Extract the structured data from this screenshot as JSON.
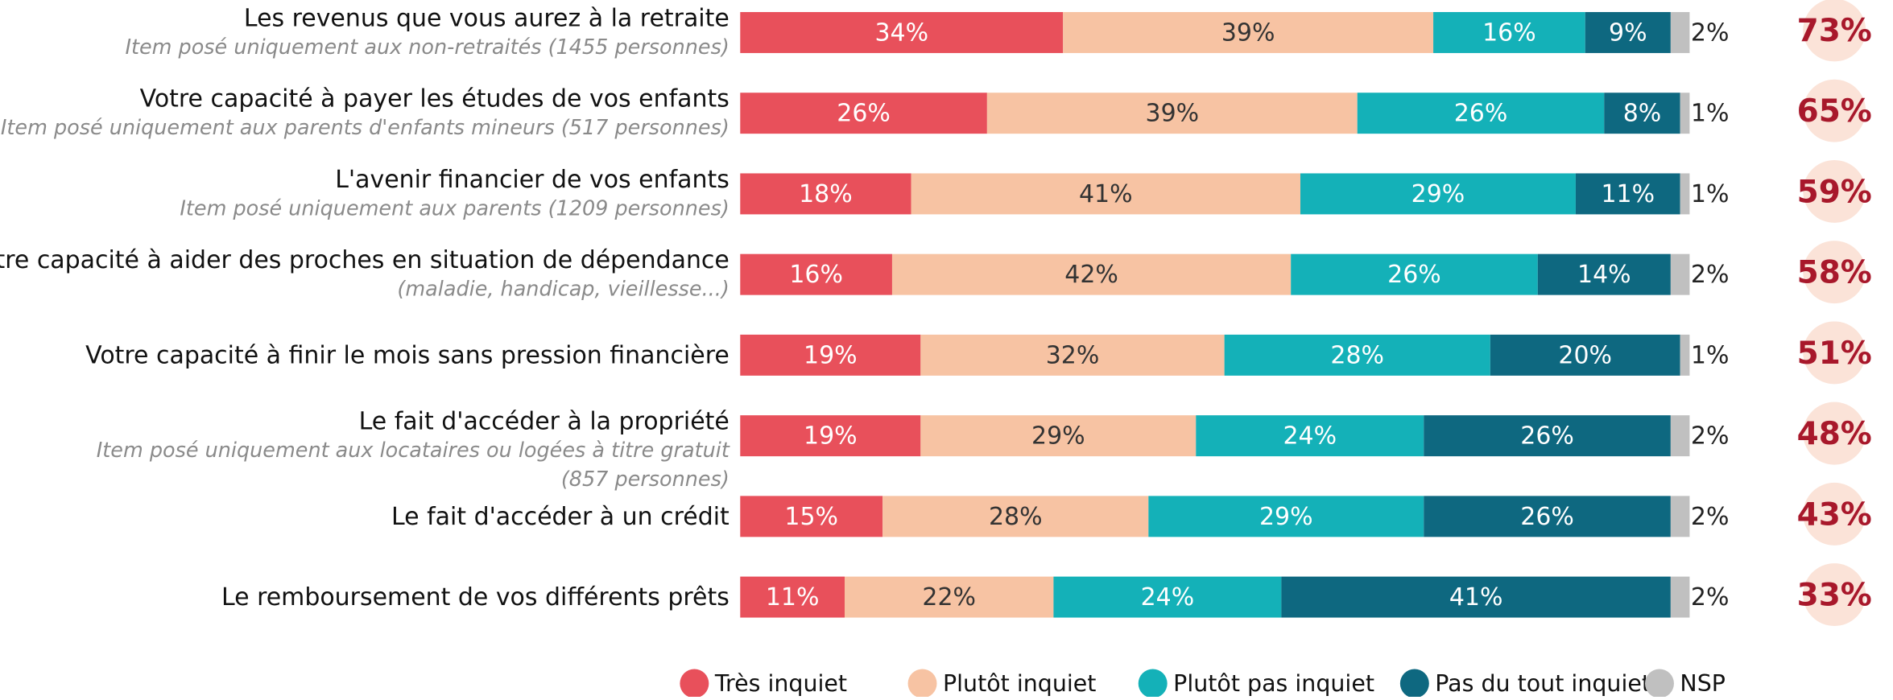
{
  "chart_data": {
    "type": "stacked-bar",
    "categories": [
      "Les revenus que vous aurez à la retraite",
      "Votre capacité à payer les études de vos enfants",
      "L'avenir financier de vos enfants",
      "Votre capacité à aider des proches en situation de dépendance",
      "Votre capacité à finir le mois sans pression financière",
      "Le fait d'accéder à la propriété",
      "Le fait d'accéder à un crédit",
      "Le remboursement de vos différents prêts"
    ],
    "sublabels": [
      [
        "Item posé uniquement aux non-retraités (1455 personnes)"
      ],
      [
        "Item posé uniquement aux parents d'enfants mineurs (517 personnes)"
      ],
      [
        "Item posé uniquement aux parents (1209 personnes)"
      ],
      [
        "(maladie, handicap, vieillesse...)"
      ],
      [],
      [
        "Item posé uniquement aux locataires ou logées à titre gratuit",
        "(857 personnes)"
      ],
      [],
      []
    ],
    "series": [
      {
        "name": "Très inquiet",
        "color": "#e8505b",
        "text_color": "#ffffff",
        "values": [
          34,
          26,
          18,
          16,
          19,
          19,
          15,
          11
        ],
        "value_labels": [
          "34%",
          "26%",
          "18%",
          "16%",
          "19%",
          "19%",
          "15%",
          "11%"
        ]
      },
      {
        "name": "Plutôt inquiet",
        "color": "#f7c3a3",
        "text_color": "#333333",
        "values": [
          39,
          39,
          41,
          42,
          32,
          29,
          28,
          22
        ],
        "value_labels": [
          "39%",
          "39%",
          "41%",
          "42%",
          "32%",
          "29%",
          "28%",
          "22%"
        ]
      },
      {
        "name": "Plutôt pas inquiet",
        "color": "#14b1b8",
        "text_color": "#ffffff",
        "values": [
          16,
          26,
          29,
          26,
          28,
          24,
          29,
          24
        ],
        "value_labels": [
          "16%",
          "26%",
          "29%",
          "26%",
          "28%",
          "24%",
          "29%",
          "24%"
        ]
      },
      {
        "name": "Pas du tout inquiet",
        "color": "#0e6880",
        "text_color": "#ffffff",
        "values": [
          9,
          8,
          11,
          14,
          20,
          26,
          26,
          41
        ],
        "value_labels": [
          "9%",
          "8%",
          "11%",
          "14%",
          "20%",
          "26%",
          "26%",
          "41%"
        ]
      },
      {
        "name": "NSP",
        "color": "#c0c0c0",
        "text_color": "#222222",
        "label_outside": true,
        "values": [
          2,
          1,
          1,
          2,
          1,
          2,
          2,
          2
        ],
        "value_labels": [
          "2%",
          "1%",
          "1%",
          "2%",
          "1%",
          "2%",
          "2%",
          "2%"
        ]
      }
    ],
    "totals": {
      "color": "#fbe3d8",
      "text_color": "#a8182b",
      "values": [
        73,
        65,
        59,
        58,
        51,
        48,
        43,
        33
      ],
      "value_labels": [
        "73%",
        "65%",
        "59%",
        "58%",
        "51%",
        "48%",
        "43%",
        "33%"
      ]
    }
  }
}
